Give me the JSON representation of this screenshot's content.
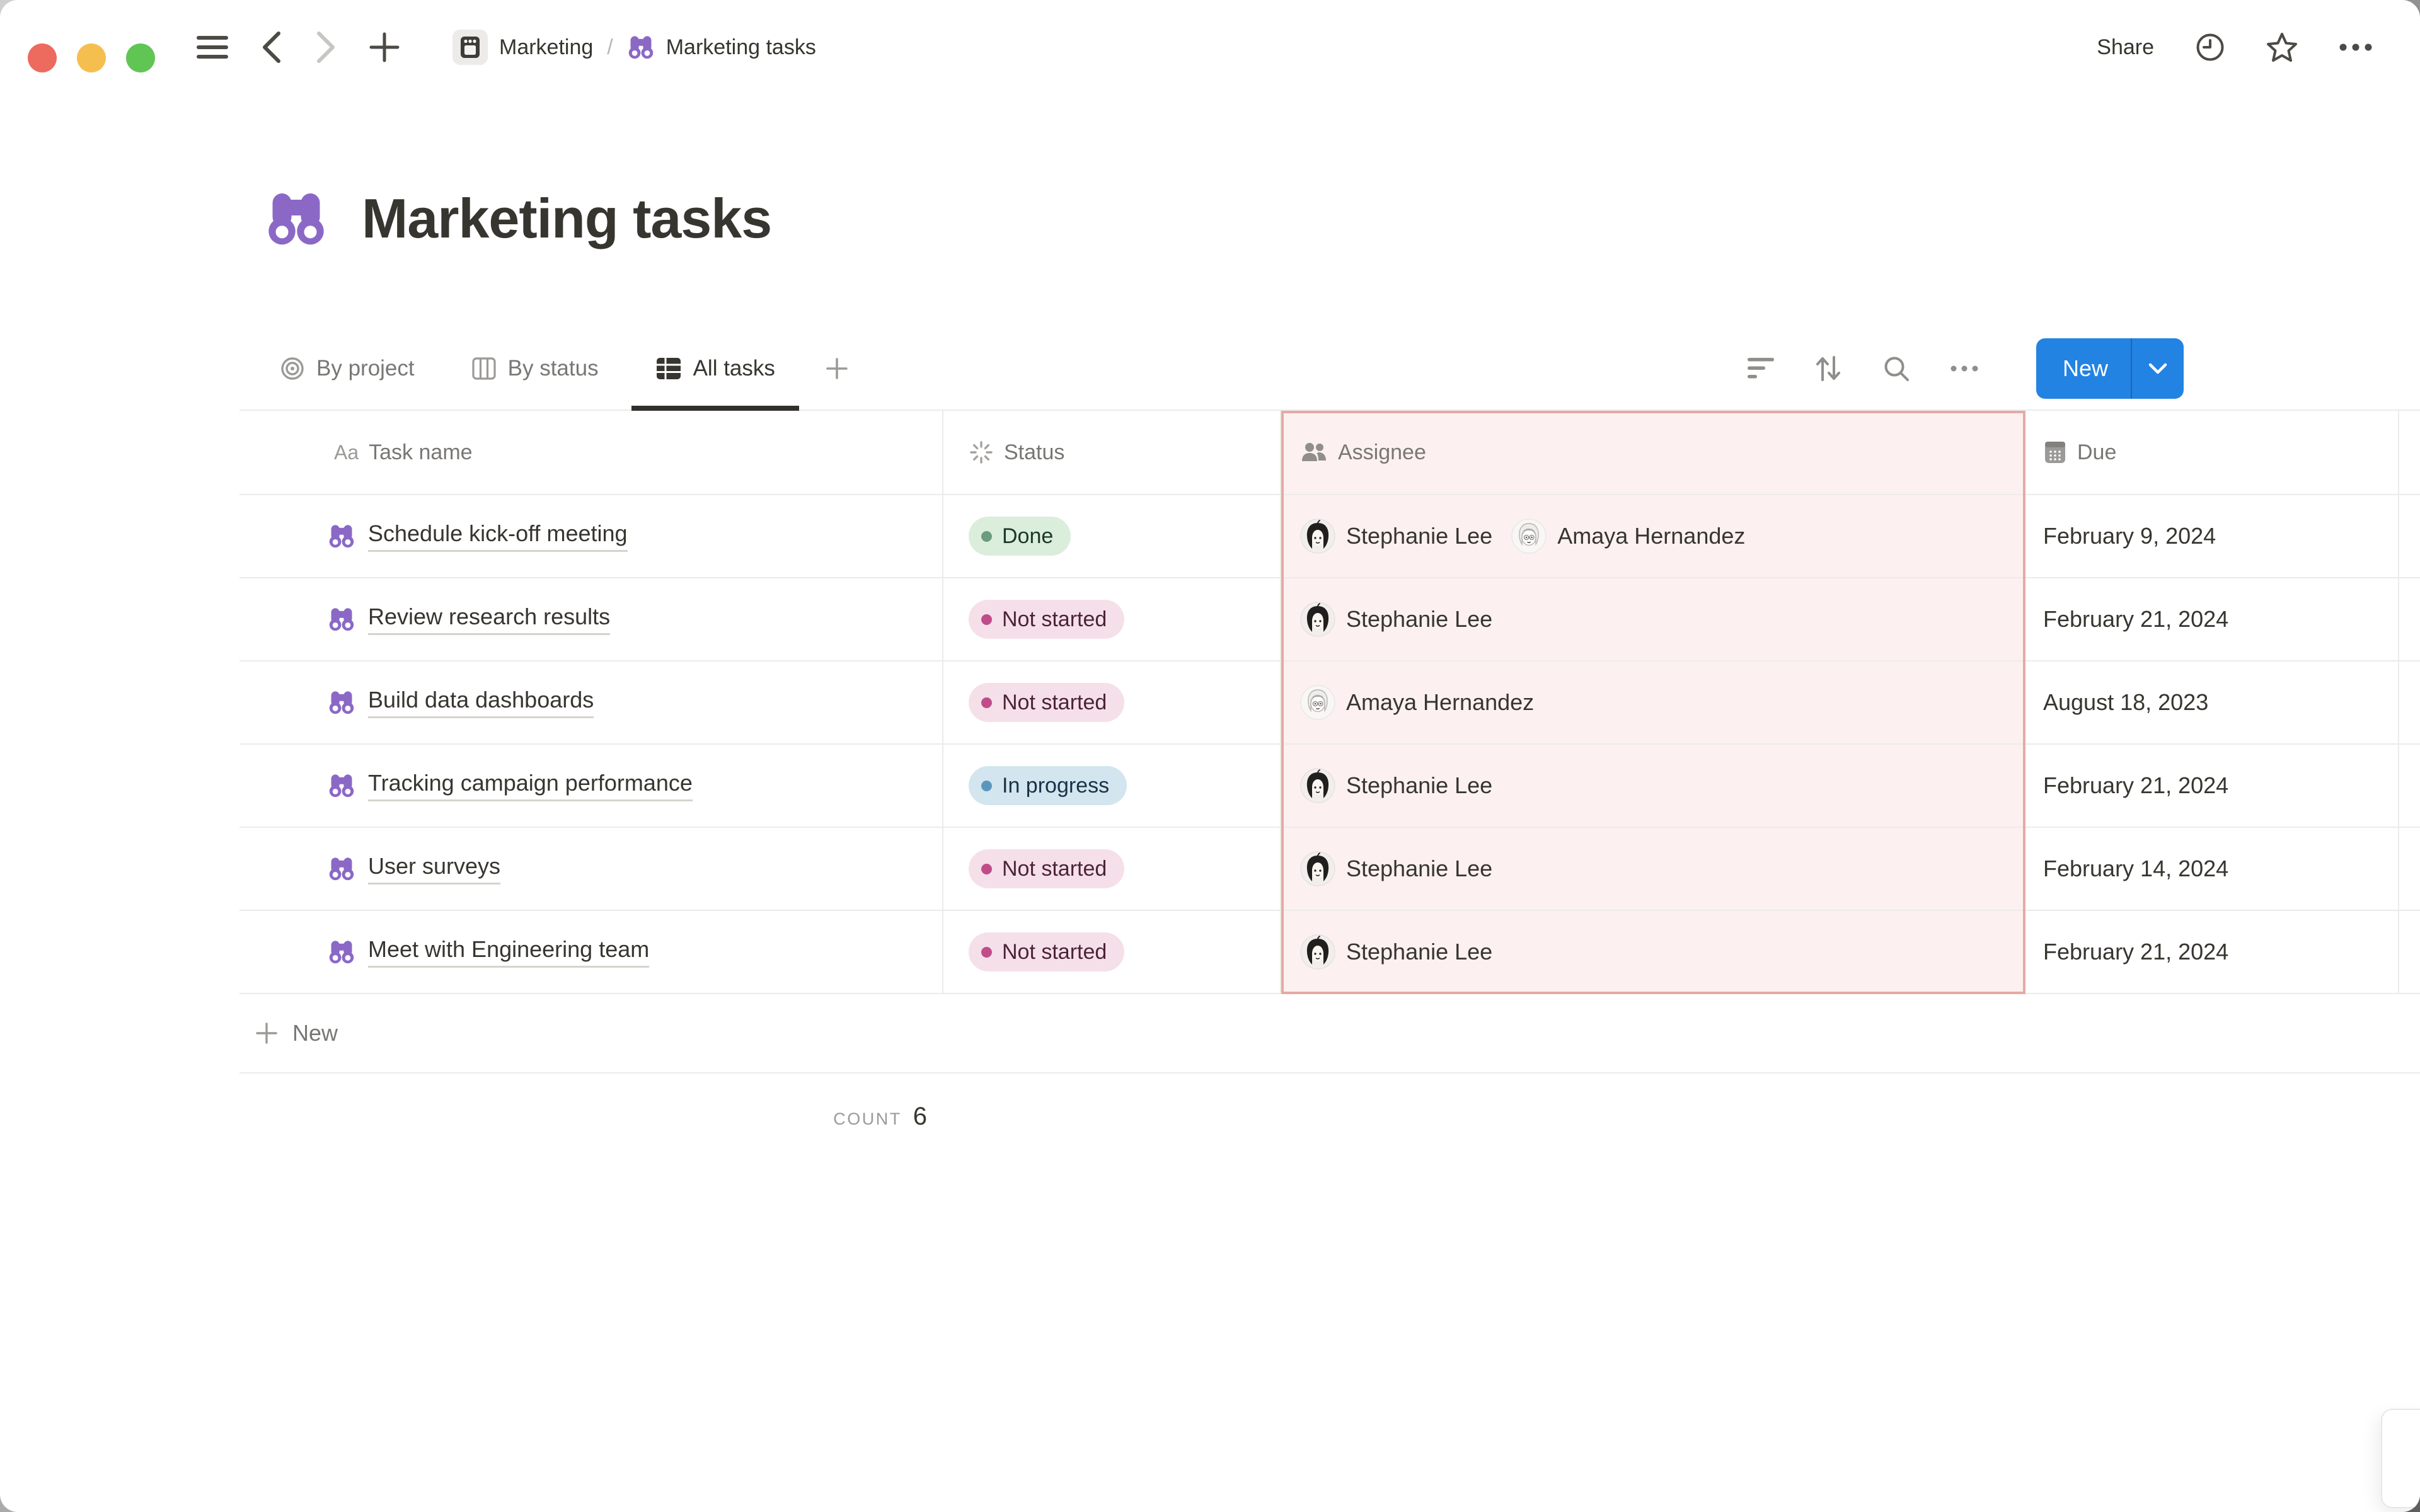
{
  "window": {
    "traffic_lights": {
      "close": "#ED6A5E",
      "minimize": "#F5BF4F",
      "zoom": "#61C554"
    }
  },
  "topbar": {
    "breadcrumb": [
      {
        "label": "Marketing"
      },
      {
        "label": "Marketing tasks"
      }
    ],
    "separator": "/",
    "share_label": "Share"
  },
  "page": {
    "title": "Marketing tasks",
    "icon": "binoculars"
  },
  "views": {
    "tabs": [
      {
        "label": "By project",
        "icon": "target-icon",
        "active": false
      },
      {
        "label": "By status",
        "icon": "board-icon",
        "active": false
      },
      {
        "label": "All tasks",
        "icon": "table-icon",
        "active": true
      }
    ]
  },
  "toolbar": {
    "new_label": "New"
  },
  "table": {
    "headers": [
      {
        "label": "Task name",
        "icon": "text-icon",
        "icon_text": "Aa"
      },
      {
        "label": "Status",
        "icon": "spinner-icon"
      },
      {
        "label": "Assignee",
        "icon": "people-icon"
      },
      {
        "label": "Due",
        "icon": "calendar-icon"
      }
    ],
    "highlighted_column": "Assignee",
    "rows": [
      {
        "task": "Schedule kick-off meeting",
        "status": "Done",
        "status_key": "done",
        "assignees": [
          {
            "name": "Stephanie Lee",
            "avatar": "stephanie"
          },
          {
            "name": "Amaya Hernandez",
            "avatar": "amaya"
          }
        ],
        "due": "February 9, 2024"
      },
      {
        "task": "Review research results",
        "status": "Not started",
        "status_key": "not_started",
        "assignees": [
          {
            "name": "Stephanie Lee",
            "avatar": "stephanie"
          }
        ],
        "due": "February 21, 2024"
      },
      {
        "task": "Build data dashboards",
        "status": "Not started",
        "status_key": "not_started",
        "assignees": [
          {
            "name": "Amaya Hernandez",
            "avatar": "amaya"
          }
        ],
        "due": "August 18, 2023"
      },
      {
        "task": "Tracking campaign performance",
        "status": "In progress",
        "status_key": "in_progress",
        "assignees": [
          {
            "name": "Stephanie Lee",
            "avatar": "stephanie"
          }
        ],
        "due": "February 21, 2024"
      },
      {
        "task": "User surveys",
        "status": "Not started",
        "status_key": "not_started",
        "assignees": [
          {
            "name": "Stephanie Lee",
            "avatar": "stephanie"
          }
        ],
        "due": "February 14, 2024"
      },
      {
        "task": "Meet with Engineering team",
        "status": "Not started",
        "status_key": "not_started",
        "assignees": [
          {
            "name": "Stephanie Lee",
            "avatar": "stephanie"
          }
        ],
        "due": "February 21, 2024"
      }
    ],
    "new_row_label": "New",
    "count_label": "COUNT",
    "count_value": "6"
  },
  "colors": {
    "accent_blue": "#2383E2",
    "text_dark": "#37352F",
    "text_gray": "#787774",
    "divider": "#ECEBE9",
    "purple": "#8B68C6",
    "highlight_border": "#E7A9A3",
    "highlight_bg": "#FCF1F0",
    "status": {
      "done": {
        "bg": "#DBEDDB",
        "dot": "#6C9B7D",
        "text": "#1C3829"
      },
      "not_started": {
        "bg": "#F5E0E9",
        "dot": "#C14C8A",
        "text": "#4C2337"
      },
      "in_progress": {
        "bg": "#D3E5EF",
        "dot": "#5B97BD",
        "text": "#183347"
      }
    }
  }
}
